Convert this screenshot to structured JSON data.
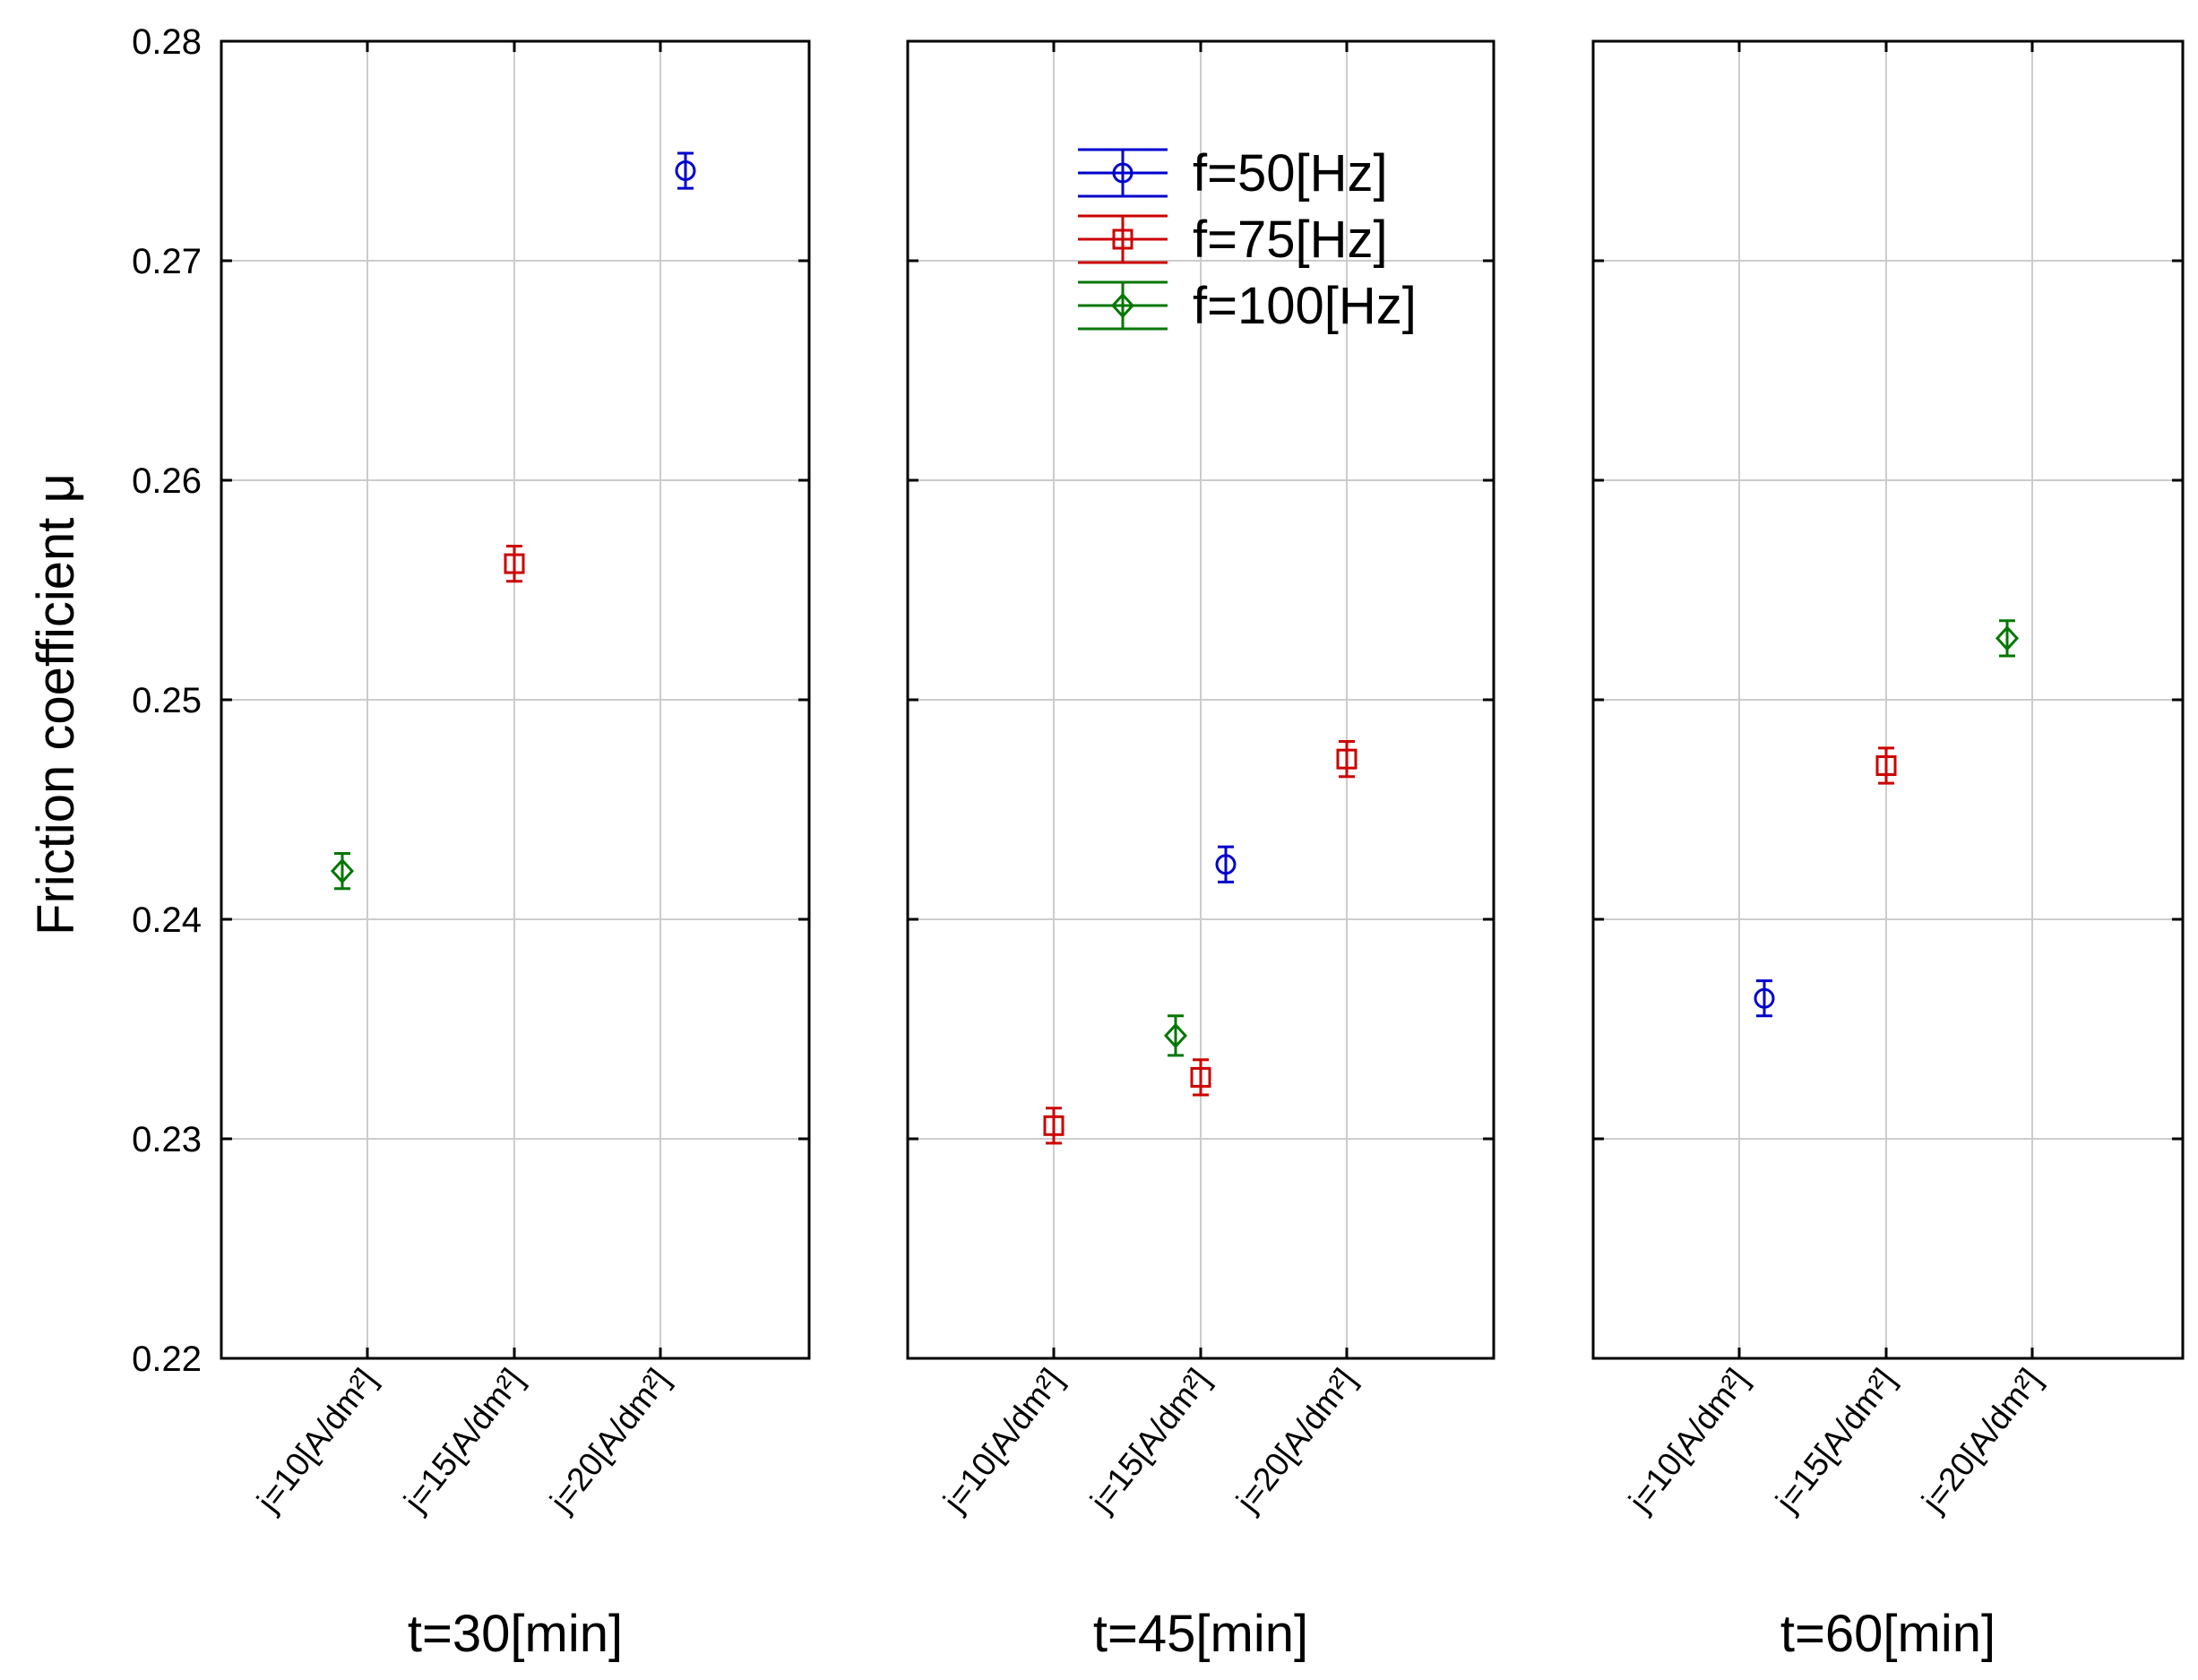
{
  "chart_data": {
    "type": "scatter",
    "ylabel": "Friction coefficient μ",
    "ylim": [
      0.22,
      0.28
    ],
    "yticks": [
      "0.22",
      "0.23",
      "0.24",
      "0.25",
      "0.26",
      "0.27",
      "0.28"
    ],
    "categories": [
      "j=10[A/dm²]",
      "j=15[A/dm²]",
      "j=20[A/dm²]"
    ],
    "series_meta": [
      {
        "name": "f=50[Hz]",
        "color": "#0000cc",
        "marker": "circle"
      },
      {
        "name": "f=75[Hz]",
        "color": "#cc0000",
        "marker": "square"
      },
      {
        "name": "f=100[Hz]",
        "color": "#007700",
        "marker": "diamond"
      }
    ],
    "panels": [
      {
        "title": "t=30[min]",
        "points": [
          {
            "series": 2,
            "category": 0,
            "y": 0.2422,
            "err": 0.0008
          },
          {
            "series": 1,
            "category": 1,
            "y": 0.2562,
            "err": 0.0008
          },
          {
            "series": 0,
            "category": 2,
            "y": 0.2741,
            "err": 0.0008
          }
        ]
      },
      {
        "title": "t=45[min]",
        "points": [
          {
            "series": 1,
            "category": 0,
            "y": 0.2306,
            "err": 0.0008
          },
          {
            "series": 0,
            "category": 1,
            "y": 0.2425,
            "err": 0.0008
          },
          {
            "series": 1,
            "category": 1,
            "y": 0.2328,
            "err": 0.0008
          },
          {
            "series": 2,
            "category": 1,
            "y": 0.2347,
            "err": 0.0009
          },
          {
            "series": 1,
            "category": 2,
            "y": 0.2473,
            "err": 0.0008
          }
        ]
      },
      {
        "title": "t=60[min]",
        "points": [
          {
            "series": 0,
            "category": 0,
            "y": 0.2364,
            "err": 0.0008
          },
          {
            "series": 1,
            "category": 1,
            "y": 0.247,
            "err": 0.0008
          },
          {
            "series": 2,
            "category": 2,
            "y": 0.2528,
            "err": 0.0008
          }
        ]
      }
    ],
    "legend": {
      "location": "upper-center of middle panel"
    }
  }
}
